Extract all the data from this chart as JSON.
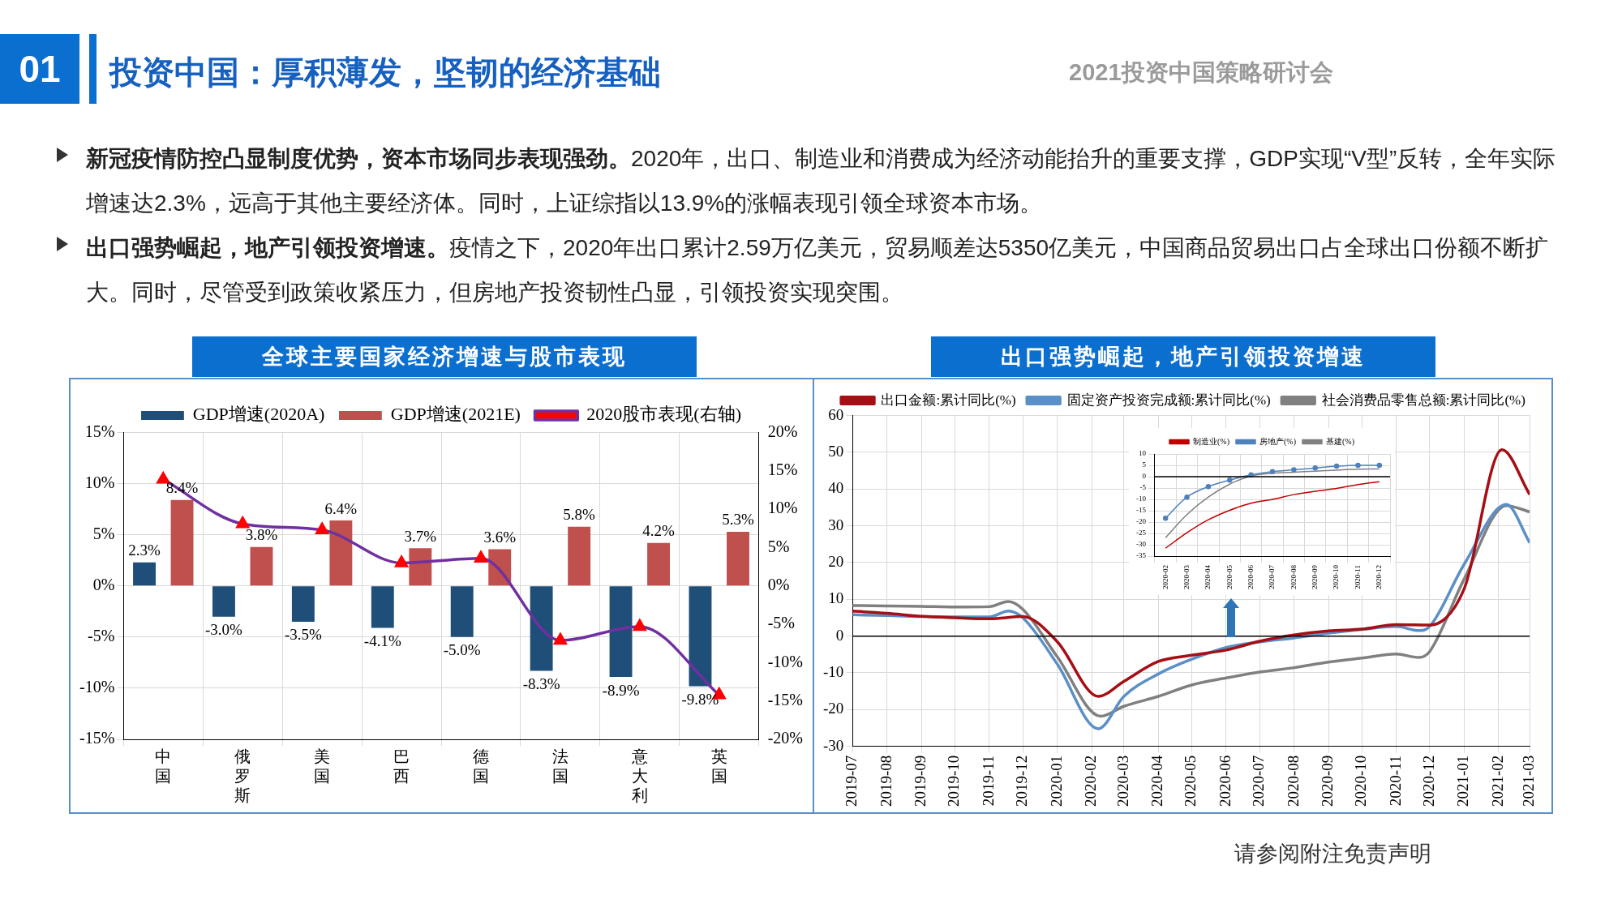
{
  "chart_data": [
    {
      "type": "other",
      "title": "投资中国：厚积薄发，坚韧的经济基础",
      "annotations": [
        "01",
        "2021投资中国策略研讨会",
        "新冠疫情防控凸显制度优势，资本市场同步表现强劲。",
        "2020年，出口、制造业和消费成为经济动能抬升的重要支撑，GDP实现“V型”反转，全年实际增速达2.3%，远高于其他主要经济体。同时，上证综指以13.9%的涨幅表现引领全球资本市场。",
        "出口强势崛起，地产引领投资增速。",
        "疫情之下，2020年出口累计2.59万亿美元，贸易顺差达5350亿美元，中国商品贸易出口占全球出口份额不断扩大。同时，尽管受到政策收紧压力，但房地产投资韧性凸显，引领投资实现突围。",
        "请参阅附注免责声明"
      ]
    },
    {
      "type": "bar",
      "title": "全球主要国家经济增速与股市表现",
      "categories": [
        "中国",
        "俄罗斯",
        "美国",
        "巴西",
        "德国",
        "法国",
        "意大利",
        "英国"
      ],
      "series": [
        {
          "name": "GDP增速(2020A)",
          "color": "#1f4e79",
          "values": [
            2.3,
            -3.0,
            -3.5,
            -4.1,
            -5.0,
            -8.3,
            -8.9,
            -9.8
          ],
          "value_labels": [
            "2.3%",
            "-3.0%",
            "-3.5%",
            "-4.1%",
            "-5.0%",
            "-8.3%",
            "-8.9%",
            "-9.8%"
          ]
        },
        {
          "name": "GDP增速(2021E)",
          "color": "#c0504d",
          "values": [
            8.4,
            3.8,
            6.4,
            3.7,
            3.6,
            5.8,
            4.2,
            5.3
          ],
          "value_labels": [
            "8.4%",
            "3.8%",
            "6.4%",
            "3.7%",
            "3.6%",
            "5.8%",
            "4.2%",
            "5.3%"
          ]
        },
        {
          "name": "2020股市表现(右轴)",
          "type": "line",
          "axis": "y2",
          "color": "#7030a0",
          "colors": [
            "#ff0000",
            "#ff0000",
            "#ff0000",
            "#ff0000",
            "#ff0000",
            "#ff0000",
            "#ff0000",
            "#ff0000"
          ],
          "marker": "triangle",
          "values": [
            13.9,
            8.1,
            7.3,
            3.0,
            3.6,
            -7.1,
            -5.3,
            -14.2
          ]
        }
      ],
      "ylim": [
        -15,
        15
      ],
      "yticks": [
        {
          "value": -15,
          "label": "-15%"
        },
        {
          "value": -10,
          "label": "-10%"
        },
        {
          "value": -5,
          "label": "-5%"
        },
        {
          "value": 0,
          "label": "0%"
        },
        {
          "value": 5,
          "label": "5%"
        },
        {
          "value": 10,
          "label": "10%"
        },
        {
          "value": 15,
          "label": "15%"
        }
      ],
      "y2lim": [
        -20,
        20
      ],
      "y2ticks": [
        {
          "value": -20,
          "label": "-20%"
        },
        {
          "value": -15,
          "label": "-15%"
        },
        {
          "value": -10,
          "label": "-10%"
        },
        {
          "value": -5,
          "label": "-5%"
        },
        {
          "value": 0,
          "label": "0%"
        },
        {
          "value": 5,
          "label": "5%"
        },
        {
          "value": 10,
          "label": "10%"
        },
        {
          "value": 15,
          "label": "15%"
        },
        {
          "value": 20,
          "label": "20%"
        }
      ],
      "grid": true,
      "legend": "top"
    },
    {
      "type": "line",
      "title": "出口强势崛起，地产引领投资增速",
      "xlim": [
        "2019-07",
        "2021-03"
      ],
      "xticks": [
        "2019-07",
        "2019-08",
        "2019-09",
        "2019-10",
        "2019-11",
        "2019-12",
        "2020-01",
        "2020-02",
        "2020-03",
        "2020-04",
        "2020-05",
        "2020-06",
        "2020-07",
        "2020-08",
        "2020-09",
        "2020-10",
        "2020-11",
        "2020-12",
        "2021-01",
        "2021-02",
        "2021-03"
      ],
      "ylim": [
        -30,
        60
      ],
      "yticks": [
        -30,
        -20,
        -10,
        0,
        10,
        20,
        30,
        40,
        50,
        60
      ],
      "grid": true,
      "legend": "top",
      "ref_lines": [
        {
          "axis": "y",
          "value": 0,
          "color": "#000000"
        }
      ],
      "series": [
        {
          "name": "出口金额:累计同比(%)",
          "color": "#a50f15",
          "x": [
            "2019-07",
            "2019-08",
            "2019-09",
            "2019-10",
            "2019-11",
            "2019-12",
            "2020-01",
            "2020-02-07",
            "2020-03",
            "2020-04",
            "2020-05",
            "2020-06",
            "2020-07",
            "2020-08",
            "2020-09",
            "2020-10",
            "2020-11",
            "2020-12",
            "2021-01",
            "2021-02-04",
            "2021-03"
          ],
          "values": [
            6.8,
            6.2,
            5.4,
            5.0,
            4.7,
            5.3,
            -1.5,
            -16.4,
            -12.3,
            -6.9,
            -5.2,
            -3.8,
            -1.4,
            0.3,
            1.4,
            1.9,
            3.1,
            3.0,
            12.8,
            50.7,
            38.5
          ]
        },
        {
          "name": "固定资产投资完成额:累计同比(%)",
          "color": "#5b8fc7",
          "x": [
            "2019-07",
            "2019-08",
            "2019-09",
            "2019-10",
            "2019-11",
            "2019-11-18",
            "2019-12",
            "2020-01",
            "2020-02-07",
            "2020-03",
            "2020-04",
            "2020-05",
            "2020-06",
            "2020-07",
            "2020-08",
            "2020-09",
            "2020-10",
            "2020-11",
            "2020-11-21",
            "2020-12",
            "2021-01",
            "2021-02-08",
            "2021-03"
          ],
          "values": [
            5.8,
            5.6,
            5.3,
            5.2,
            5.2,
            6.8,
            5.0,
            -7.6,
            -25.2,
            -16.4,
            -10.3,
            -6.3,
            -3.1,
            -1.6,
            -0.5,
            0.8,
            1.8,
            2.6,
            1.5,
            2.6,
            19.5,
            35.8,
            25.4
          ]
        },
        {
          "name": "社会消费品零售总额:累计同比(%)",
          "color": "#808080",
          "x": [
            "2019-07",
            "2019-08",
            "2019-09",
            "2019-10",
            "2019-11",
            "2019-11-18",
            "2019-12",
            "2020-01",
            "2020-02-09",
            "2020-03",
            "2020-04",
            "2020-05",
            "2020-06",
            "2020-07",
            "2020-08",
            "2020-09",
            "2020-10",
            "2020-11",
            "2020-11-21",
            "2020-12",
            "2021-01",
            "2021-02-08",
            "2021-03"
          ],
          "values": [
            8.3,
            8.2,
            8.1,
            7.9,
            8.0,
            9.4,
            7.3,
            -5.6,
            -21.8,
            -19.1,
            -16.4,
            -13.3,
            -11.4,
            -9.8,
            -8.6,
            -7.1,
            -6.0,
            -4.9,
            -5.8,
            -4.2,
            15.5,
            35.5,
            33.8
          ]
        }
      ]
    },
    {
      "type": "line",
      "categories": [
        "2020-02",
        "2020-03",
        "2020-04",
        "2020-05",
        "2020-06",
        "2020-07",
        "2020-08",
        "2020-09",
        "2020-10",
        "2020-11",
        "2020-12"
      ],
      "ylim": [
        -35,
        10
      ],
      "yticks": [
        -35,
        -30,
        -25,
        -20,
        -15,
        -10,
        -5,
        0,
        5,
        10
      ],
      "grid": true,
      "legend": "top",
      "ref_lines": [
        {
          "axis": "y",
          "value": 0,
          "color": "#000000"
        }
      ],
      "series": [
        {
          "name": "制造业(%)",
          "color": "#c00000",
          "marker": "none",
          "values": [
            -31.5,
            -24.7,
            -19.0,
            -14.8,
            -11.7,
            -10.0,
            -7.9,
            -6.4,
            -5.2,
            -3.5,
            -2.2
          ]
        },
        {
          "name": "房地产(%)",
          "color": "#4f81bd",
          "marker": "circle",
          "values": [
            -18.3,
            -9.0,
            -4.4,
            -1.5,
            0.8,
            2.2,
            3.0,
            3.8,
            4.6,
            5.0,
            5.0
          ]
        },
        {
          "name": "基建(%)",
          "color": "#808080",
          "marker": "none",
          "values": [
            -26.9,
            -16.7,
            -9.0,
            -3.3,
            0.3,
            1.5,
            2.0,
            2.4,
            2.9,
            3.3,
            3.4
          ]
        }
      ]
    }
  ]
}
